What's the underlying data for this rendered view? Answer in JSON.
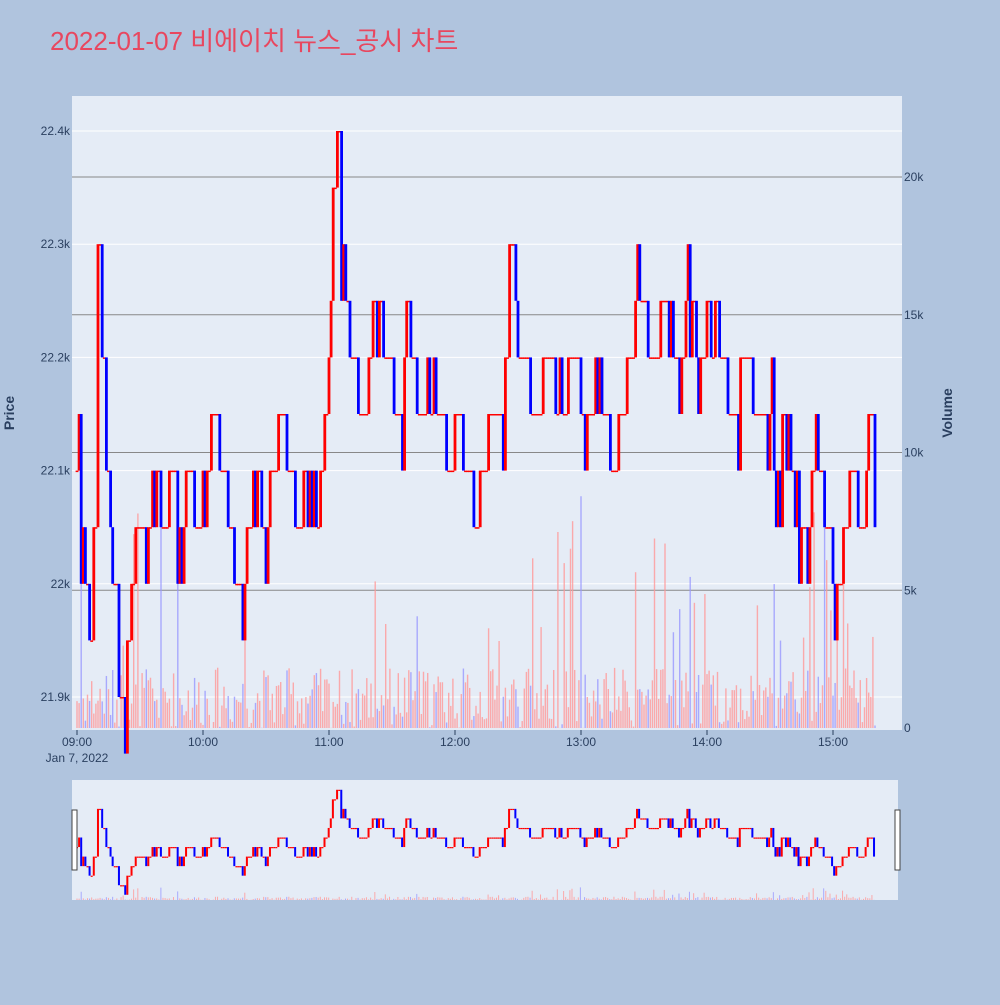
{
  "chart_data": {
    "type": "candlestick",
    "title": "2022-01-07 비에이치 뉴스_공시 차트",
    "date_label": "Jan 7, 2022",
    "ylabel": "Price",
    "y2label": "Volume",
    "ylim": [
      21875,
      22425
    ],
    "volume_lim": [
      0,
      22000
    ],
    "price_ticks": [
      21900,
      22000,
      22100,
      22200,
      22300,
      22400
    ],
    "price_tick_labels": [
      "21.9k",
      "22k",
      "22.1k",
      "22.2k",
      "22.3k",
      "22.4k"
    ],
    "volume_ticks": [
      0,
      5000,
      10000,
      15000,
      20000
    ],
    "volume_tick_labels": [
      "0",
      "5k",
      "10k",
      "15k",
      "20k"
    ],
    "x_range": [
      "09:00",
      "15:30"
    ],
    "x_ticks": [
      "09:00",
      "10:00",
      "11:00",
      "12:00",
      "13:00",
      "14:00",
      "15:00"
    ],
    "x_tick_labels": [
      "09:00",
      "10:00",
      "11:00",
      "12:00",
      "13:00",
      "14:00",
      "15:00"
    ],
    "grid": true,
    "rangeslider": true,
    "colors": {
      "up": "#ff0000",
      "down": "#0000ff",
      "title": "#e8475f",
      "plot_bg": "#e5ecf6",
      "paper_bg": "#b0c4de",
      "volume_up": "#ff9999",
      "volume_down": "#9999ff"
    },
    "price_path": [
      [
        "09:00",
        22100
      ],
      [
        "09:02",
        22050
      ],
      [
        "09:04",
        22000
      ],
      [
        "09:06",
        21950
      ],
      [
        "09:08",
        22050
      ],
      [
        "09:10",
        22300
      ],
      [
        "09:12",
        22200
      ],
      [
        "09:14",
        22100
      ],
      [
        "09:16",
        22050
      ],
      [
        "09:18",
        22000
      ],
      [
        "09:20",
        21950
      ],
      [
        "09:22",
        21900
      ],
      [
        "09:24",
        21950
      ],
      [
        "09:26",
        22000
      ],
      [
        "09:28",
        22050
      ],
      [
        "09:32",
        22050
      ],
      [
        "09:36",
        22100
      ],
      [
        "09:40",
        22050
      ],
      [
        "09:44",
        22100
      ],
      [
        "09:48",
        22050
      ],
      [
        "09:52",
        22100
      ],
      [
        "09:56",
        22050
      ],
      [
        "10:00",
        22100
      ],
      [
        "10:04",
        22150
      ],
      [
        "10:08",
        22100
      ],
      [
        "10:12",
        22050
      ],
      [
        "10:16",
        22000
      ],
      [
        "10:20",
        22050
      ],
      [
        "10:24",
        22100
      ],
      [
        "10:28",
        22050
      ],
      [
        "10:32",
        22100
      ],
      [
        "10:36",
        22150
      ],
      [
        "10:40",
        22100
      ],
      [
        "10:44",
        22050
      ],
      [
        "10:48",
        22100
      ],
      [
        "10:52",
        22050
      ],
      [
        "10:56",
        22100
      ],
      [
        "10:58",
        22150
      ],
      [
        "11:00",
        22250
      ],
      [
        "11:02",
        22350
      ],
      [
        "11:04",
        22400
      ],
      [
        "11:06",
        22300
      ],
      [
        "11:08",
        22250
      ],
      [
        "11:10",
        22200
      ],
      [
        "11:14",
        22150
      ],
      [
        "11:18",
        22200
      ],
      [
        "11:22",
        22250
      ],
      [
        "11:26",
        22200
      ],
      [
        "11:30",
        22150
      ],
      [
        "11:36",
        22200
      ],
      [
        "11:42",
        22150
      ],
      [
        "11:50",
        22150
      ],
      [
        "11:56",
        22100
      ],
      [
        "12:00",
        22150
      ],
      [
        "12:04",
        22100
      ],
      [
        "12:08",
        22050
      ],
      [
        "12:12",
        22100
      ],
      [
        "12:16",
        22150
      ],
      [
        "12:20",
        22150
      ],
      [
        "12:24",
        22200
      ],
      [
        "12:26",
        22300
      ],
      [
        "12:28",
        22250
      ],
      [
        "12:30",
        22200
      ],
      [
        "12:36",
        22150
      ],
      [
        "12:42",
        22200
      ],
      [
        "12:48",
        22150
      ],
      [
        "12:54",
        22200
      ],
      [
        "13:00",
        22150
      ],
      [
        "13:06",
        22200
      ],
      [
        "13:10",
        22150
      ],
      [
        "13:14",
        22100
      ],
      [
        "13:18",
        22150
      ],
      [
        "13:22",
        22200
      ],
      [
        "13:26",
        22250
      ],
      [
        "13:32",
        22200
      ],
      [
        "13:38",
        22250
      ],
      [
        "13:44",
        22200
      ],
      [
        "13:50",
        22250
      ],
      [
        "13:56",
        22200
      ],
      [
        "14:00",
        22250
      ],
      [
        "14:06",
        22200
      ],
      [
        "14:10",
        22150
      ],
      [
        "14:16",
        22200
      ],
      [
        "14:22",
        22150
      ],
      [
        "14:28",
        22150
      ],
      [
        "14:32",
        22100
      ],
      [
        "14:36",
        22150
      ],
      [
        "14:40",
        22100
      ],
      [
        "14:44",
        22050
      ],
      [
        "14:50",
        22100
      ],
      [
        "14:56",
        22050
      ],
      [
        "15:00",
        22000
      ],
      [
        "15:04",
        22050
      ],
      [
        "15:08",
        22100
      ],
      [
        "15:12",
        22050
      ],
      [
        "15:16",
        22100
      ],
      [
        "15:18",
        22150
      ],
      [
        "15:20",
        22050
      ]
    ]
  }
}
